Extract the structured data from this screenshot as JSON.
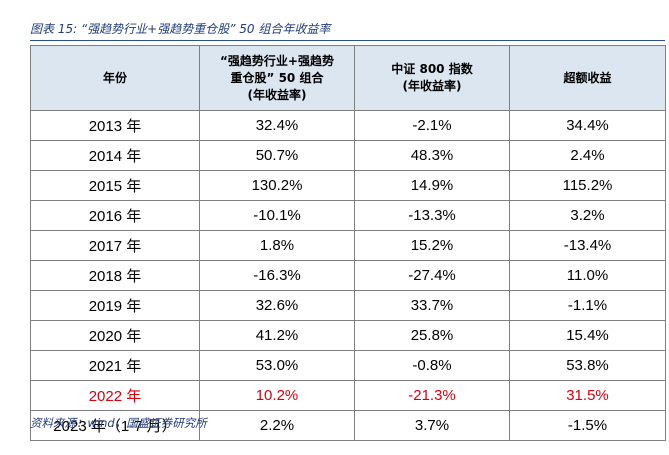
{
  "caption": "图表 15: “强趋势行业+强趋势重仓股” 50 组合年收益率",
  "headers": {
    "year": "年份",
    "portfolio_l1": "“强趋势行业+强趋势",
    "portfolio_l2": "重仓股” 50 组合",
    "portfolio_l3": "(年收益率)",
    "index_l1": "中证 800 指数",
    "index_l2": "(年收益率)",
    "excess": "超额收益"
  },
  "rows": [
    {
      "year": "2013 年",
      "portfolio": "32.4%",
      "index": "-2.1%",
      "excess": "34.4%"
    },
    {
      "year": "2014 年",
      "portfolio": "50.7%",
      "index": "48.3%",
      "excess": "2.4%"
    },
    {
      "year": "2015 年",
      "portfolio": "130.2%",
      "index": "14.9%",
      "excess": "115.2%"
    },
    {
      "year": "2016 年",
      "portfolio": "-10.1%",
      "index": "-13.3%",
      "excess": "3.2%"
    },
    {
      "year": "2017 年",
      "portfolio": "1.8%",
      "index": "15.2%",
      "excess": "-13.4%"
    },
    {
      "year": "2018 年",
      "portfolio": "-16.3%",
      "index": "-27.4%",
      "excess": "11.0%"
    },
    {
      "year": "2019 年",
      "portfolio": "32.6%",
      "index": "33.7%",
      "excess": "-1.1%"
    },
    {
      "year": "2020 年",
      "portfolio": "41.2%",
      "index": "25.8%",
      "excess": "15.4%"
    },
    {
      "year": "2021 年",
      "portfolio": "53.0%",
      "index": "-0.8%",
      "excess": "53.8%"
    },
    {
      "year": "2022 年",
      "portfolio": "10.2%",
      "index": "-21.3%",
      "excess": "31.5%"
    },
    {
      "year": "2023 年（1-7 月）",
      "portfolio": "2.2%",
      "index": "3.7%",
      "excess": "-1.5%"
    }
  ],
  "highlight_row": 9,
  "highlight_color": "#d9000d",
  "header_bg": "#dce6f1",
  "source": "资料来源：wind，国盛证券研究所"
}
